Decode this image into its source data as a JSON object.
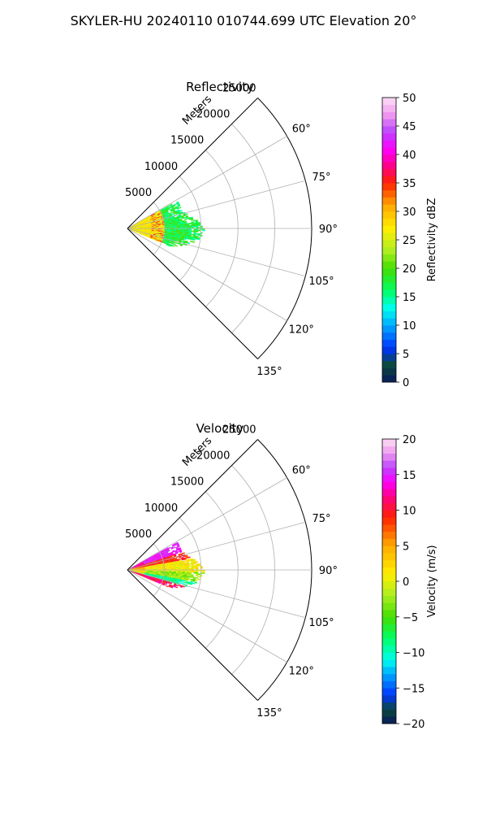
{
  "figure_title": "SKYLER-HU  20240110  010744.699 UTC Elevation 20°",
  "chart_data": [
    {
      "type": "heatmap",
      "subtype": "polar-sector-ppi",
      "title": "Reflectivity",
      "radial_label": "Meters",
      "r_range": [
        0,
        25000
      ],
      "r_ticks": [
        5000,
        10000,
        15000,
        20000,
        25000
      ],
      "r_tick_labels": [
        "5000",
        "10000",
        "15000",
        "20000",
        "25000"
      ],
      "theta_range_deg": [
        45,
        135
      ],
      "theta_ticks_deg": [
        60,
        75,
        90,
        105,
        120,
        135
      ],
      "theta_tick_labels": [
        "60°",
        "75°",
        "90°",
        "105°",
        "120°",
        "135°"
      ],
      "grid": true,
      "colorbar": {
        "label": "Reflectivity dBZ",
        "range": [
          0,
          50
        ],
        "ticks": [
          0,
          5,
          10,
          15,
          20,
          25,
          30,
          35,
          40,
          45,
          50
        ],
        "tick_labels": [
          "0",
          "5",
          "10",
          "15",
          "20",
          "25",
          "30",
          "35",
          "40",
          "45",
          "50"
        ],
        "colormap": "pyart_HomeyerRainbow-like",
        "stops": [
          {
            "v": 0,
            "c": "#0a1a5c"
          },
          {
            "v": 3,
            "c": "#0b4a3a"
          },
          {
            "v": 6,
            "c": "#0033ff"
          },
          {
            "v": 10,
            "c": "#00aaff"
          },
          {
            "v": 13,
            "c": "#00ffee"
          },
          {
            "v": 16,
            "c": "#00ff66"
          },
          {
            "v": 20,
            "c": "#44dd00"
          },
          {
            "v": 23,
            "c": "#aaee22"
          },
          {
            "v": 27,
            "c": "#ffee00"
          },
          {
            "v": 31,
            "c": "#ffaa00"
          },
          {
            "v": 35,
            "c": "#ff2200"
          },
          {
            "v": 38,
            "c": "#ff0088"
          },
          {
            "v": 41,
            "c": "#ff00ff"
          },
          {
            "v": 44,
            "c": "#bb44ff"
          },
          {
            "v": 47,
            "c": "#ee99ee"
          },
          {
            "v": 50,
            "c": "#fde0f5"
          }
        ]
      },
      "data_extent_m": 10500,
      "description_values": "Dominant 15–30 dBZ; yellow/orange 25–30 dBZ near radar, red bands ~35 dBZ around 4–5 km, green/cyan 15–20 dBZ at outer edge ~8–11 km"
    },
    {
      "type": "heatmap",
      "subtype": "polar-sector-ppi",
      "title": "Velocity",
      "radial_label": "Meters",
      "r_range": [
        0,
        25000
      ],
      "r_ticks": [
        5000,
        10000,
        15000,
        20000,
        25000
      ],
      "r_tick_labels": [
        "5000",
        "10000",
        "15000",
        "20000",
        "25000"
      ],
      "theta_range_deg": [
        45,
        135
      ],
      "theta_ticks_deg": [
        60,
        75,
        90,
        105,
        120,
        135
      ],
      "theta_tick_labels": [
        "60°",
        "75°",
        "90°",
        "105°",
        "120°",
        "135°"
      ],
      "grid": true,
      "colorbar": {
        "label": "Velocity (m/s)",
        "range": [
          -20,
          20
        ],
        "ticks": [
          -20,
          -15,
          -10,
          -5,
          0,
          5,
          10,
          15,
          20
        ],
        "tick_labels": [
          "−20",
          "−15",
          "−10",
          "−5",
          "0",
          "5",
          "10",
          "15",
          "20"
        ],
        "colormap": "pyart_BuDRd-like",
        "stops": [
          {
            "v": -20,
            "c": "#0a1a5c"
          },
          {
            "v": -18,
            "c": "#0b4a3a"
          },
          {
            "v": -16,
            "c": "#0033ff"
          },
          {
            "v": -13,
            "c": "#00aaff"
          },
          {
            "v": -11,
            "c": "#00ffee"
          },
          {
            "v": -8,
            "c": "#00ff66"
          },
          {
            "v": -5,
            "c": "#44dd00"
          },
          {
            "v": -2,
            "c": "#aaee22"
          },
          {
            "v": 1,
            "c": "#ffee00"
          },
          {
            "v": 5,
            "c": "#ffaa00"
          },
          {
            "v": 9,
            "c": "#ff2200"
          },
          {
            "v": 12,
            "c": "#ff0088"
          },
          {
            "v": 14,
            "c": "#ff00ff"
          },
          {
            "v": 16,
            "c": "#bb44ff"
          },
          {
            "v": 18,
            "c": "#ee99ee"
          },
          {
            "v": 20,
            "c": "#fde0f5"
          }
        ]
      },
      "data_extent_m": 10500,
      "description_values": "Positive (magenta/red, 10–15 m/s) on left/upper azimuths, negative (cyan/green, −10 to −5 m/s) along ~95–110°, near 0 (yellow) elsewhere"
    }
  ]
}
